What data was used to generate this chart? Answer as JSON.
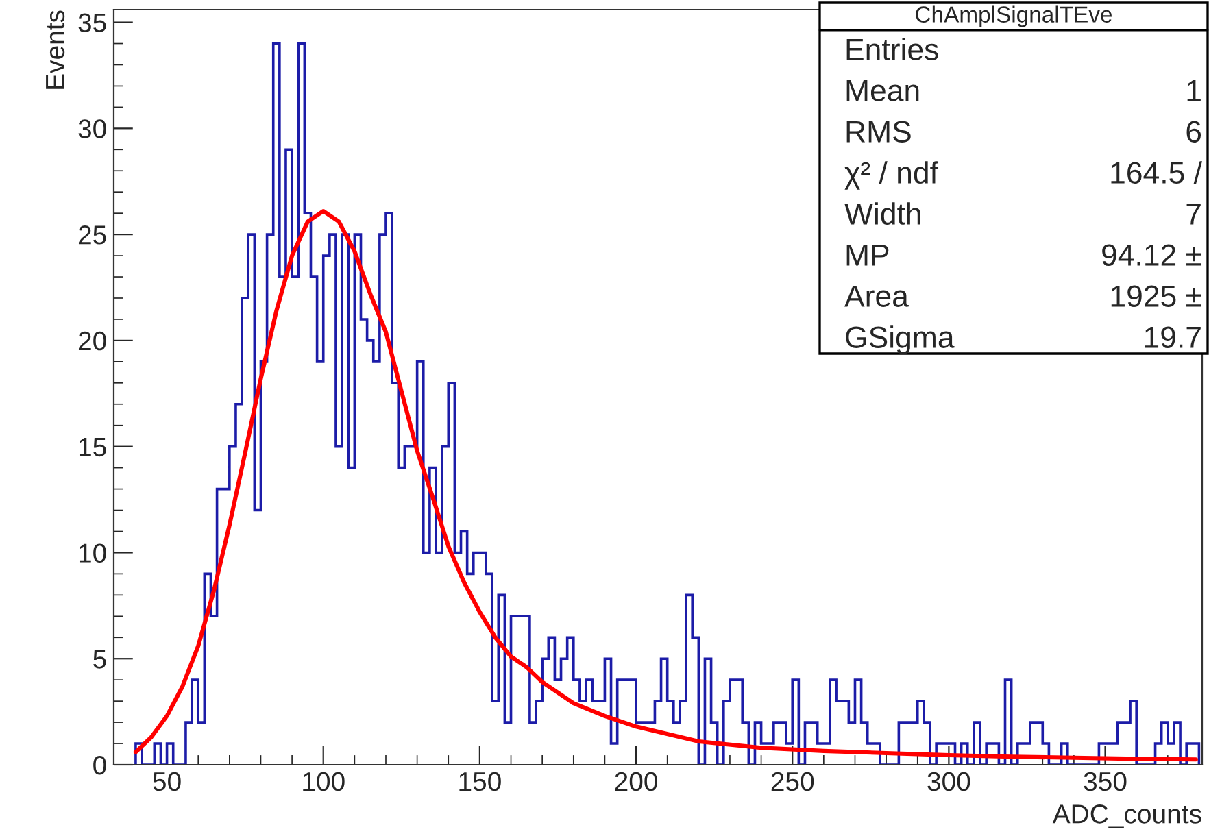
{
  "chart_data": {
    "type": "histogram",
    "xlabel": "ADC_counts",
    "ylabel": "Events",
    "bins": [
      40,
      42,
      44,
      46,
      48,
      50,
      52,
      54,
      56,
      58,
      60,
      62,
      64,
      66,
      68,
      70,
      72,
      74,
      76,
      78,
      80,
      82,
      84,
      86,
      88,
      90,
      92,
      94,
      96,
      98,
      100,
      102,
      104,
      106,
      108,
      110,
      112,
      114,
      116,
      118,
      120,
      122,
      124,
      126,
      128,
      130,
      132,
      134,
      136,
      138,
      140,
      142,
      144,
      146,
      148,
      150,
      152,
      154,
      156,
      158,
      160,
      162,
      164,
      166,
      168,
      170,
      172,
      174,
      176,
      178,
      180,
      182,
      184,
      186,
      188,
      190,
      192,
      194,
      196,
      198,
      200,
      202,
      204,
      206,
      208,
      210,
      212,
      214,
      216,
      218,
      220,
      222,
      224,
      226,
      228,
      230,
      232,
      234,
      236,
      238,
      240,
      242,
      244,
      246,
      248,
      250,
      252,
      254,
      256,
      258,
      260,
      262,
      264,
      266,
      268,
      270,
      272,
      274,
      276,
      278,
      280,
      282,
      284,
      286,
      288,
      290,
      292,
      294,
      296,
      298,
      300,
      302,
      304,
      306,
      308,
      310,
      312,
      314,
      316,
      318,
      320,
      322,
      324,
      326,
      328,
      330,
      332,
      334,
      336,
      338,
      340,
      342,
      344,
      346,
      348,
      350,
      352,
      354,
      356,
      358,
      360,
      362,
      364,
      366,
      368,
      370,
      372,
      374,
      376,
      378,
      380
    ],
    "series": [
      {
        "color": "#1c1ca8",
        "values": [
          1,
          0,
          0,
          1,
          0,
          1,
          0,
          0,
          2,
          4,
          2,
          9,
          7,
          13,
          13,
          15,
          17,
          22,
          25,
          12,
          19,
          25,
          34,
          23,
          29,
          23,
          34,
          26,
          23,
          19,
          24,
          25,
          15,
          25,
          14,
          25,
          21,
          20,
          19,
          25,
          26,
          18,
          14,
          15,
          15,
          19,
          10,
          14,
          10,
          15,
          18,
          10,
          11,
          9,
          10,
          10,
          9,
          3,
          8,
          2,
          7,
          7,
          7,
          2,
          3,
          5,
          6,
          4,
          5,
          6,
          4,
          3,
          4,
          3,
          3,
          5,
          1,
          4,
          4,
          4,
          2,
          2,
          2,
          3,
          5,
          3,
          2,
          3,
          8,
          6,
          0,
          5,
          2,
          0,
          3,
          4,
          4,
          2,
          0,
          2,
          1,
          1,
          2,
          2,
          1,
          4,
          0,
          2,
          2,
          1,
          1,
          4,
          3,
          3,
          2,
          4,
          2,
          1,
          1,
          0,
          0,
          0,
          2,
          2,
          2,
          3,
          2,
          0,
          1,
          1,
          1,
          0,
          1,
          0,
          2,
          0,
          1,
          1,
          0,
          4,
          0,
          1,
          1,
          2,
          2,
          1,
          0,
          0,
          1,
          0,
          0,
          0,
          0,
          0,
          1,
          1,
          1,
          2,
          2,
          3,
          0,
          0,
          0,
          1,
          2,
          1,
          2,
          0,
          1,
          1
        ]
      },
      {
        "type": "line",
        "color": "#ff0000",
        "x": [
          40,
          45,
          50,
          55,
          60,
          65,
          70,
          75,
          80,
          85,
          90,
          95,
          100,
          105,
          110,
          115,
          120,
          125,
          130,
          135,
          140,
          145,
          150,
          155,
          160,
          165,
          170,
          180,
          190,
          200,
          220,
          240,
          260,
          280,
          300,
          320,
          340,
          360,
          379
        ],
        "values": [
          0.6,
          1.3,
          2.3,
          3.7,
          5.6,
          8.2,
          11.3,
          14.7,
          18.2,
          21.4,
          24.0,
          25.6,
          26.1,
          25.6,
          24.2,
          22.2,
          20.4,
          17.6,
          14.8,
          12.6,
          10.3,
          8.6,
          7.2,
          6.0,
          5.1,
          4.6,
          3.9,
          2.9,
          2.3,
          1.8,
          1.1,
          0.8,
          0.65,
          0.55,
          0.45,
          0.38,
          0.33,
          0.28,
          0.25
        ]
      }
    ],
    "xlim": [
      33,
      381
    ],
    "ylim": [
      0,
      35.6
    ],
    "xticks": [
      50,
      100,
      150,
      200,
      250,
      300,
      350
    ],
    "yticks": [
      0,
      5,
      10,
      15,
      20,
      25,
      30,
      35
    ],
    "grid": false,
    "annotations": [
      "ChAmplSignalTEve",
      "Entries",
      "Mean",
      "RMS",
      "χ² / ndf",
      "Width",
      "MP",
      "Area",
      "GSigma",
      "1",
      "6",
      "164.5 /",
      "7",
      "94.12 ±",
      "1925 ±",
      "19.7"
    ]
  }
}
